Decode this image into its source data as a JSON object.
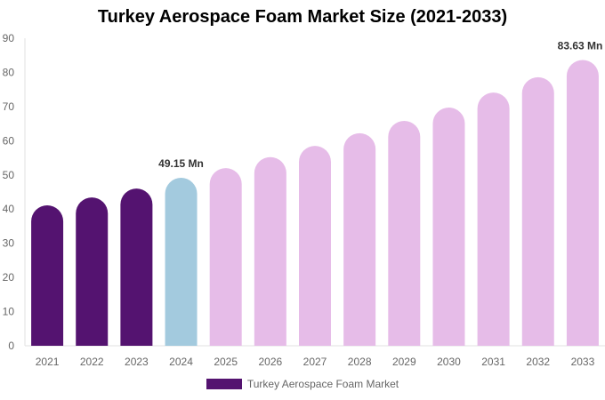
{
  "chart_data": {
    "type": "bar",
    "title": "Turkey Aerospace Foam Market Size (2021-2033)",
    "categories": [
      "2021",
      "2022",
      "2023",
      "2024",
      "2025",
      "2026",
      "2027",
      "2028",
      "2029",
      "2030",
      "2031",
      "2032",
      "2033"
    ],
    "series": [
      {
        "name": "Turkey Aerospace Foam Market",
        "values": [
          41.1,
          43.4,
          46.0,
          49.15,
          52.0,
          55.2,
          58.5,
          62.2,
          65.8,
          69.7,
          74.1,
          78.6,
          83.63
        ]
      }
    ],
    "data_labels": {
      "3": "49.15 Mn",
      "12": "83.63 Mn"
    },
    "ylim": [
      0,
      90
    ],
    "yticks": [
      0,
      10,
      20,
      30,
      40,
      50,
      60,
      70,
      80,
      90
    ],
    "grid": false,
    "legend": "bottom",
    "colors": {
      "historical": "#541370",
      "current": "#a3cade",
      "forecast": "#e6bce8"
    }
  }
}
